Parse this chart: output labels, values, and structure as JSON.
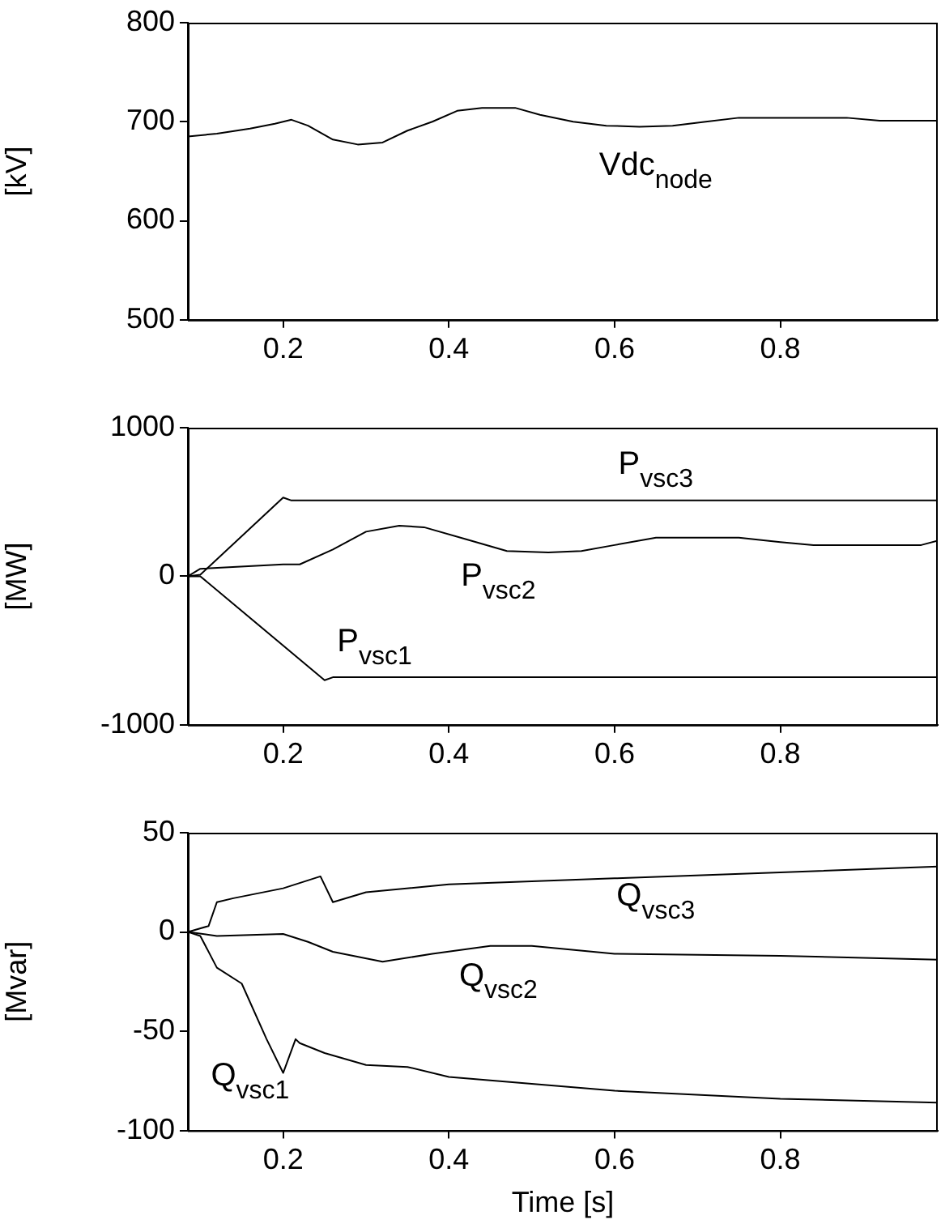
{
  "chart_data": [
    {
      "type": "line",
      "ylabel": "[kV]",
      "xlim": [
        0.085,
        0.99
      ],
      "xticks": [
        0.2,
        0.4,
        0.6,
        0.8
      ],
      "ylim": [
        500,
        800
      ],
      "yticks": [
        500,
        600,
        700,
        800
      ],
      "grid": false,
      "legend": false,
      "marker": "none",
      "line_style": "solid",
      "series": [
        {
          "name": "Vdc$_{node}$",
          "color": "#000000",
          "x": [
            0.085,
            0.12,
            0.16,
            0.19,
            0.21,
            0.23,
            0.26,
            0.29,
            0.32,
            0.35,
            0.38,
            0.41,
            0.44,
            0.48,
            0.51,
            0.55,
            0.59,
            0.63,
            0.67,
            0.71,
            0.75,
            0.88,
            0.92,
            0.99
          ],
          "values": [
            685,
            688,
            693,
            698,
            702,
            696,
            682,
            677,
            679,
            691,
            700,
            711,
            714,
            714,
            707,
            700,
            696,
            695,
            696,
            700,
            704,
            704,
            701,
            701
          ]
        }
      ]
    },
    {
      "type": "line",
      "ylabel": "[MW]",
      "xlim": [
        0.085,
        0.99
      ],
      "xticks": [
        0.2,
        0.4,
        0.6,
        0.8
      ],
      "ylim": [
        -1000,
        1000
      ],
      "yticks": [
        -1000,
        0,
        1000
      ],
      "grid": false,
      "legend": false,
      "marker": "none",
      "line_style": "solid",
      "series": [
        {
          "name": "P$_{vsc3}$",
          "color": "#000000",
          "x": [
            0.085,
            0.1,
            0.2,
            0.21,
            0.99
          ],
          "values": [
            0,
            10,
            530,
            510,
            510
          ]
        },
        {
          "name": "P$_{vsc2}$",
          "color": "#000000",
          "x": [
            0.085,
            0.1,
            0.2,
            0.22,
            0.26,
            0.3,
            0.34,
            0.37,
            0.42,
            0.47,
            0.52,
            0.56,
            0.6,
            0.65,
            0.75,
            0.8,
            0.84,
            0.97,
            0.99
          ],
          "values": [
            0,
            50,
            80,
            80,
            180,
            300,
            340,
            330,
            250,
            170,
            160,
            170,
            210,
            260,
            260,
            230,
            210,
            210,
            240
          ]
        },
        {
          "name": "P$_{vsc1}$",
          "color": "#000000",
          "x": [
            0.085,
            0.1,
            0.25,
            0.26,
            0.99
          ],
          "values": [
            0,
            0,
            -700,
            -680,
            -680
          ]
        }
      ]
    },
    {
      "type": "line",
      "xlabel": "Time [s]",
      "ylabel": "[Mvar]",
      "xlim": [
        0.085,
        0.99
      ],
      "xticks": [
        0.2,
        0.4,
        0.6,
        0.8
      ],
      "ylim": [
        -100,
        50
      ],
      "yticks": [
        -100,
        -50,
        0,
        50
      ],
      "grid": false,
      "legend": false,
      "marker": "none",
      "line_style": "solid",
      "series": [
        {
          "name": "Q$_{vsc3}$",
          "color": "#000000",
          "x": [
            0.085,
            0.11,
            0.12,
            0.14,
            0.2,
            0.245,
            0.26,
            0.3,
            0.4,
            0.6,
            0.8,
            0.99
          ],
          "values": [
            0,
            3,
            15,
            17,
            22,
            28,
            15,
            20,
            24,
            27,
            30,
            33
          ]
        },
        {
          "name": "Q$_{vsc2}$",
          "color": "#000000",
          "x": [
            0.085,
            0.12,
            0.2,
            0.23,
            0.26,
            0.32,
            0.38,
            0.45,
            0.5,
            0.6,
            0.8,
            0.99
          ],
          "values": [
            0,
            -2,
            -1,
            -5,
            -10,
            -15,
            -11,
            -7,
            -7,
            -11,
            -12,
            -14
          ]
        },
        {
          "name": "Q$_{vsc1}$",
          "color": "#000000",
          "x": [
            0.085,
            0.1,
            0.12,
            0.15,
            0.18,
            0.2,
            0.215,
            0.22,
            0.25,
            0.3,
            0.35,
            0.4,
            0.6,
            0.8,
            0.99
          ],
          "values": [
            0,
            -2,
            -18,
            -26,
            -54,
            -71,
            -54,
            -56,
            -61,
            -67,
            -68,
            -73,
            -80,
            -84,
            -86
          ]
        }
      ]
    }
  ]
}
